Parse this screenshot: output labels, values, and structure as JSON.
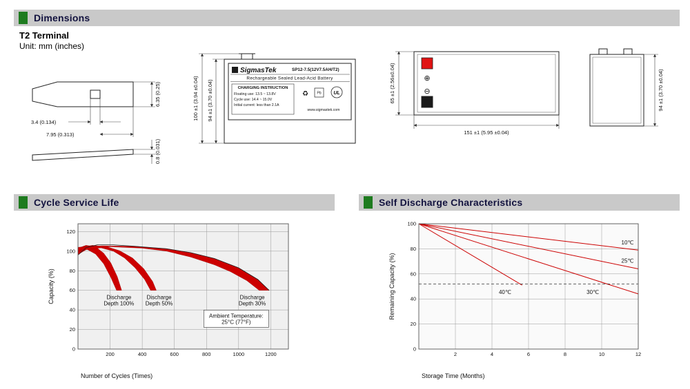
{
  "colors": {
    "accent_green": "#1e7b1f",
    "header_bg": "#c9c9c9",
    "chart_red": "#cc0000"
  },
  "sections": {
    "dimensions": {
      "title": "Dimensions",
      "subtitle": "T2 Terminal",
      "unit": "Unit: mm (inches)"
    },
    "cycle_life": {
      "title": "Cycle Service Life"
    },
    "self_discharge": {
      "title": "Self Discharge Characteristics"
    }
  },
  "drawings": {
    "terminal": {
      "dim_hole": "3.4 (0.134)",
      "dim_offset": "7.95 (0.313)",
      "dim_height": "6.35 (0.25)",
      "dim_thickness": "0.8 (0.031)"
    },
    "front": {
      "brand": "SigmasTek",
      "model": "SP12-7.5(12V7.5AH/T2)",
      "type_line": "Rechargeable Sealed Lead-Acid Battery",
      "charging_title": "CHARGING INSTRUCTION",
      "charging_lines": [
        "Floating use: 13.5 ~ 13.8V",
        "Cycle use: 14.4 ~ 15.0V",
        "Initial current: less than 2.1A"
      ],
      "website": "www.sigmastek.com",
      "icons": {
        "recycle": "♻",
        "pb": "Pb",
        "ul": "UL"
      },
      "dim_overall": "100 ±1 (3.94 ±0.04)",
      "dim_body": "94 ±1 (3.70 ±0.04)"
    },
    "top": {
      "plus": "⊕",
      "minus": "⊖",
      "dim_depth": "65 ±1 (2.56±0.04)",
      "dim_width": "151 ±1 (5.95 ±0.04)"
    },
    "side": {
      "dim_height": "94 ±1 (3.70 ±0.04)"
    }
  },
  "chart_data": [
    {
      "id": "chart-cycle",
      "type": "area",
      "title": "Cycle Service Life",
      "xlabel": "Number of Cycles (Times)",
      "ylabel": "Capacity (%)",
      "xlim": [
        0,
        1310
      ],
      "ylim": [
        0,
        128
      ],
      "xticks": [
        200,
        400,
        600,
        800,
        1000,
        1200
      ],
      "yticks": [
        0,
        20,
        40,
        60,
        80,
        100,
        120
      ],
      "grid": true,
      "legend_position": "none",
      "plot_bg": "#f0f0f0",
      "band_color": "#cc0000",
      "bands": [
        {
          "name": "Discharge Depth 100%",
          "points": [
            [
              0,
              103
            ],
            [
              50,
              106
            ],
            [
              110,
              104.5
            ],
            [
              160,
              98
            ],
            [
              205,
              88
            ],
            [
              245,
              74
            ],
            [
              268,
              62
            ],
            [
              272,
              60
            ],
            [
              240,
              60
            ],
            [
              205,
              73
            ],
            [
              160,
              87
            ],
            [
              110,
              97
            ],
            [
              55,
              102
            ],
            [
              0,
              96.5
            ]
          ]
        },
        {
          "name": "Discharge Depth 50%",
          "points": [
            [
              0,
              103.5
            ],
            [
              90,
              106
            ],
            [
              180,
              104.5
            ],
            [
              260,
              100.5
            ],
            [
              340,
              93
            ],
            [
              410,
              82
            ],
            [
              465,
              69
            ],
            [
              488,
              60
            ],
            [
              452,
              60
            ],
            [
              415,
              71
            ],
            [
              355,
              83
            ],
            [
              290,
              93
            ],
            [
              220,
              100
            ],
            [
              140,
              103.5
            ],
            [
              60,
              104
            ],
            [
              0,
              99
            ]
          ]
        },
        {
          "name": "Discharge Depth 30%",
          "points": [
            [
              0,
              104
            ],
            [
              150,
              105.5
            ],
            [
              350,
              105
            ],
            [
              550,
              102.5
            ],
            [
              700,
              98.5
            ],
            [
              850,
              92.5
            ],
            [
              1000,
              83
            ],
            [
              1120,
              71
            ],
            [
              1190,
              60
            ],
            [
              1128,
              60
            ],
            [
              1050,
              70
            ],
            [
              950,
              79
            ],
            [
              850,
              86
            ],
            [
              700,
              94
            ],
            [
              550,
              100
            ],
            [
              400,
              103
            ],
            [
              200,
              104.5
            ],
            [
              0,
              100.5
            ]
          ]
        }
      ],
      "lines": [
        {
          "name": "envelope",
          "color": "#222222",
          "width": 0.8,
          "points": [
            [
              0,
              96
            ],
            [
              50,
              103.5
            ],
            [
              120,
              106.5
            ],
            [
              220,
              106.5
            ],
            [
              350,
              105
            ],
            [
              550,
              102.5
            ],
            [
              700,
              98.5
            ],
            [
              850,
              92.5
            ],
            [
              1000,
              83
            ],
            [
              1120,
              71
            ],
            [
              1190,
              60
            ]
          ]
        }
      ],
      "annotations": [
        {
          "lines": [
            "Discharge",
            "Depth 100%"
          ],
          "x": 255,
          "y": 50
        },
        {
          "lines": [
            "Discharge",
            "Depth 50%"
          ],
          "x": 505,
          "y": 50
        },
        {
          "lines": [
            "Discharge",
            "Depth 30%"
          ],
          "x": 1085,
          "y": 50
        },
        {
          "lines": [
            "Ambient Temperature:",
            "25°C (77°F)"
          ],
          "x": 985,
          "y": 31,
          "box": true
        }
      ]
    },
    {
      "id": "chart-self",
      "type": "line",
      "title": "Self Discharge Characteristics",
      "xlabel": "Storage Time (Months)",
      "ylabel": "Remaining Capacity (%)",
      "xlim": [
        0,
        12
      ],
      "ylim": [
        0,
        100
      ],
      "xticks": [
        2,
        4,
        6,
        8,
        10,
        12
      ],
      "yticks": [
        0,
        20,
        40,
        60,
        80,
        100
      ],
      "grid": true,
      "legend_position": "inline-labels",
      "plot_bg": "#fafafa",
      "lines": [
        {
          "name": "10℃",
          "color": "#cc0000",
          "width": 1,
          "points": [
            [
              0,
              100
            ],
            [
              12,
              79
            ]
          ],
          "label": {
            "x": 11.0,
            "y": 84.5
          }
        },
        {
          "name": "25℃",
          "color": "#cc0000",
          "width": 1,
          "points": [
            [
              0,
              100
            ],
            [
              12,
              64
            ]
          ],
          "label": {
            "x": 11.0,
            "y": 70
          }
        },
        {
          "name": "30℃",
          "color": "#cc0000",
          "width": 1,
          "points": [
            [
              0,
              100
            ],
            [
              12,
              44
            ]
          ],
          "label": {
            "x": 9.1,
            "y": 45
          }
        },
        {
          "name": "40℃",
          "color": "#cc0000",
          "width": 1,
          "points": [
            [
              0,
              100
            ],
            [
              5.65,
              51
            ]
          ],
          "label": {
            "x": 4.3,
            "y": 45
          }
        }
      ],
      "dashed": [
        {
          "y": 52
        }
      ],
      "annotations": []
    }
  ]
}
